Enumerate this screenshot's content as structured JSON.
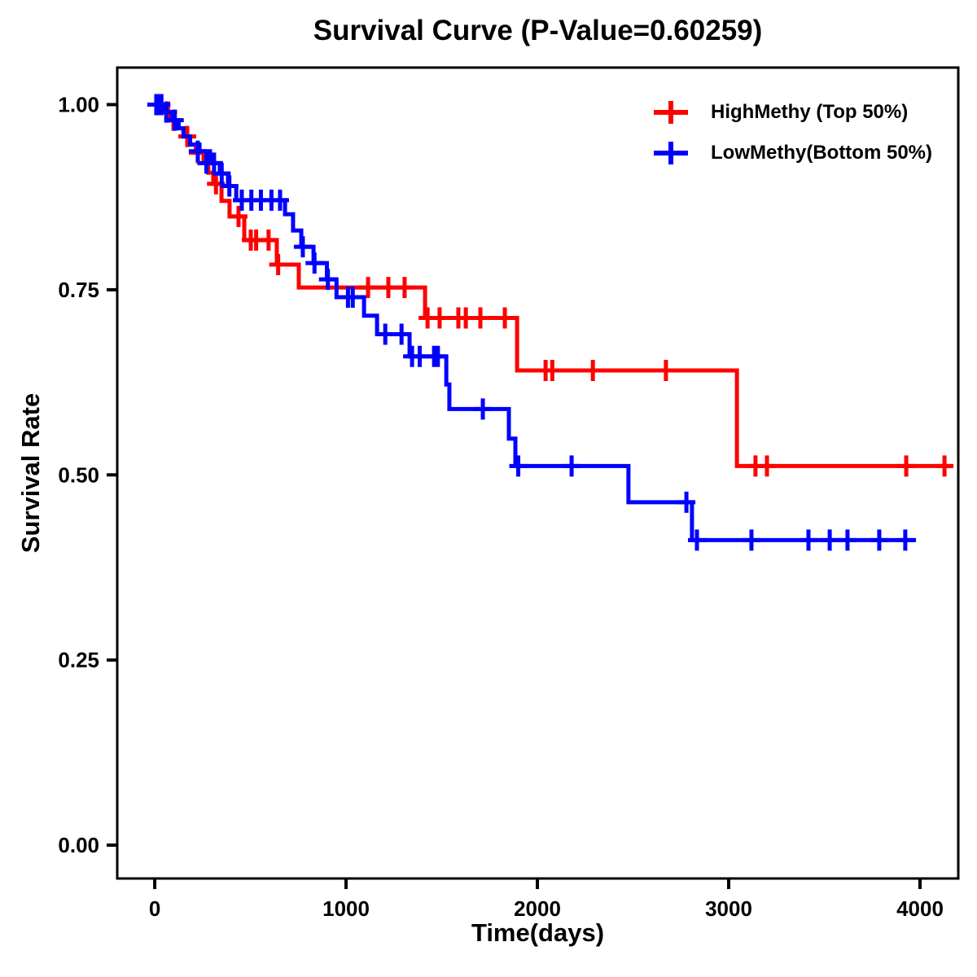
{
  "chart_data": {
    "type": "line",
    "subtype": "kaplan_meier_step",
    "title": "Survival Curve (P-Value=0.60259)",
    "p_value": "0.60259",
    "xlabel": "Time(days)",
    "ylabel": "Survival Rate",
    "xlim": [
      -196,
      4200
    ],
    "ylim": [
      -0.045,
      1.05
    ],
    "xticks": {
      "values": [
        0,
        1000,
        2000,
        3000,
        4000
      ],
      "labels": [
        "0",
        "1000",
        "2000",
        "3000",
        "4000"
      ]
    },
    "yticks": {
      "values": [
        0,
        0.25,
        0.5,
        0.75,
        1.0
      ],
      "labels": [
        "0.00",
        "0.25",
        "0.50",
        "0.75",
        "1.00"
      ]
    },
    "grid": false,
    "legend_position": "top-right",
    "frame_color": "#000000",
    "series": [
      {
        "name": "HighMethy (Top 50%)",
        "color": "#FF0000",
        "end_time": 4170,
        "steps": [
          [
            0,
            1.0
          ],
          [
            55,
            0.99
          ],
          [
            90,
            0.979
          ],
          [
            120,
            0.968
          ],
          [
            155,
            0.957
          ],
          [
            185,
            0.946
          ],
          [
            215,
            0.935
          ],
          [
            255,
            0.923
          ],
          [
            280,
            0.908
          ],
          [
            306,
            0.893
          ],
          [
            349,
            0.87
          ],
          [
            391,
            0.849
          ],
          [
            468,
            0.817
          ],
          [
            638,
            0.784
          ],
          [
            753,
            0.753
          ],
          [
            1413,
            0.712
          ],
          [
            1894,
            0.641
          ],
          [
            3043,
            0.512
          ]
        ],
        "censors": [
          [
            70,
            0.99
          ],
          [
            98,
            0.979
          ],
          [
            170,
            0.957
          ],
          [
            225,
            0.935
          ],
          [
            320,
            0.893
          ],
          [
            438,
            0.849
          ],
          [
            502,
            0.817
          ],
          [
            530,
            0.817
          ],
          [
            595,
            0.817
          ],
          [
            645,
            0.784
          ],
          [
            1115,
            0.753
          ],
          [
            1221,
            0.753
          ],
          [
            1306,
            0.753
          ],
          [
            1426,
            0.712
          ],
          [
            1489,
            0.712
          ],
          [
            1587,
            0.712
          ],
          [
            1626,
            0.712
          ],
          [
            1702,
            0.712
          ],
          [
            1830,
            0.712
          ],
          [
            2043,
            0.641
          ],
          [
            2078,
            0.641
          ],
          [
            2290,
            0.641
          ],
          [
            2672,
            0.641
          ],
          [
            3140,
            0.512
          ],
          [
            3200,
            0.512
          ],
          [
            3928,
            0.512
          ],
          [
            4128,
            0.512
          ]
        ]
      },
      {
        "name": "LowMethy(Bottom 50%)",
        "color": "#0000FF",
        "end_time": 3979,
        "steps": [
          [
            0,
            1.0
          ],
          [
            55,
            0.99
          ],
          [
            90,
            0.979
          ],
          [
            125,
            0.968
          ],
          [
            150,
            0.957
          ],
          [
            185,
            0.946
          ],
          [
            234,
            0.937
          ],
          [
            289,
            0.921
          ],
          [
            340,
            0.907
          ],
          [
            383,
            0.89
          ],
          [
            426,
            0.871
          ],
          [
            681,
            0.852
          ],
          [
            723,
            0.83
          ],
          [
            766,
            0.808
          ],
          [
            830,
            0.786
          ],
          [
            900,
            0.764
          ],
          [
            950,
            0.74
          ],
          [
            1094,
            0.715
          ],
          [
            1162,
            0.69
          ],
          [
            1332,
            0.66
          ],
          [
            1524,
            0.622
          ],
          [
            1540,
            0.589
          ],
          [
            1851,
            0.549
          ],
          [
            1885,
            0.512
          ],
          [
            2476,
            0.463
          ],
          [
            2808,
            0.412
          ]
        ],
        "censors": [
          [
            8,
            1.0
          ],
          [
            20,
            1.0
          ],
          [
            35,
            1.0
          ],
          [
            60,
            0.99
          ],
          [
            105,
            0.979
          ],
          [
            225,
            0.937
          ],
          [
            270,
            0.921
          ],
          [
            310,
            0.921
          ],
          [
            350,
            0.907
          ],
          [
            390,
            0.89
          ],
          [
            455,
            0.871
          ],
          [
            505,
            0.871
          ],
          [
            555,
            0.871
          ],
          [
            610,
            0.871
          ],
          [
            655,
            0.871
          ],
          [
            774,
            0.808
          ],
          [
            835,
            0.786
          ],
          [
            905,
            0.764
          ],
          [
            1010,
            0.74
          ],
          [
            1035,
            0.74
          ],
          [
            1205,
            0.69
          ],
          [
            1290,
            0.69
          ],
          [
            1345,
            0.66
          ],
          [
            1385,
            0.66
          ],
          [
            1460,
            0.66
          ],
          [
            1480,
            0.66
          ],
          [
            1715,
            0.589
          ],
          [
            1900,
            0.512
          ],
          [
            2179,
            0.512
          ],
          [
            2779,
            0.463
          ],
          [
            2834,
            0.412
          ],
          [
            3119,
            0.412
          ],
          [
            3417,
            0.412
          ],
          [
            3528,
            0.412
          ],
          [
            3621,
            0.412
          ],
          [
            3787,
            0.412
          ],
          [
            3923,
            0.412
          ]
        ]
      }
    ]
  }
}
